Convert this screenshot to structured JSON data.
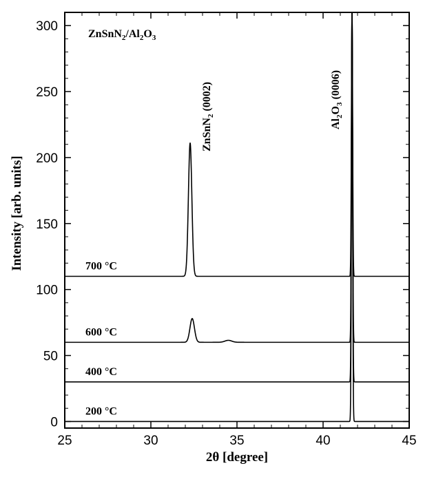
{
  "chart_data": {
    "type": "line",
    "title": "",
    "xlabel": "2θ [degree]",
    "ylabel": "Intensity [arb. units]",
    "xlim": [
      25,
      45
    ],
    "ylim": [
      -5,
      310
    ],
    "x_ticks": [
      25,
      30,
      35,
      40,
      45
    ],
    "y_ticks": [
      0,
      50,
      100,
      150,
      200,
      250,
      300
    ],
    "grid": false,
    "legend": "none",
    "annotations": {
      "sample": "ZnSnN2/Al2O3",
      "peak_znsn": "ZnSnN2 (0002)",
      "peak_al2o3": "Al2O3 (0006)"
    },
    "series": [
      {
        "name": "200 °C",
        "baseline": 0,
        "peaks": [
          {
            "center": 41.68,
            "height": 310,
            "width": 0.035
          }
        ]
      },
      {
        "name": "400 °C",
        "baseline": 30,
        "peaks": [
          {
            "center": 41.68,
            "height": 280,
            "width": 0.035
          }
        ]
      },
      {
        "name": "600 °C",
        "baseline": 60,
        "peaks": [
          {
            "center": 32.4,
            "height": 18,
            "width": 0.13
          },
          {
            "center": 34.5,
            "height": 1.5,
            "width": 0.2
          },
          {
            "center": 41.68,
            "height": 250,
            "width": 0.035
          }
        ]
      },
      {
        "name": "700 °C",
        "baseline": 110,
        "peaks": [
          {
            "center": 32.28,
            "height": 101,
            "width": 0.1
          },
          {
            "center": 41.68,
            "height": 200,
            "width": 0.035
          }
        ]
      }
    ]
  }
}
